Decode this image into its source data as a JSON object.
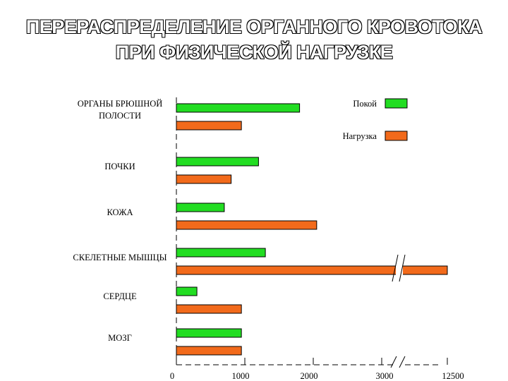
{
  "title": {
    "line1": "ПЕРЕРАСПРЕДЕЛЕНИЕ ОРГАННОГО КРОВОТОКА",
    "line2": "ПРИ ФИЗИЧЕСКОЙ НАГРУЗКЕ"
  },
  "colors": {
    "rest": "#22dd22",
    "load": "#f26a1b",
    "axis": "#000000"
  },
  "chart_data": {
    "type": "bar",
    "orientation": "horizontal",
    "categories": [
      [
        "ОРГАНЫ БРЮШНОЙ",
        "ПОЛОСТИ"
      ],
      [
        "ПОЧКИ"
      ],
      [
        "КОЖА"
      ],
      [
        "СКЕЛЕТНЫЕ МЫШЦЫ"
      ],
      [
        "СЕРДЦЕ"
      ],
      [
        "МОЗГ"
      ]
    ],
    "series": [
      {
        "name": "Покой",
        "values": [
          1800,
          1200,
          700,
          1300,
          300,
          950
        ]
      },
      {
        "name": "Нагрузка",
        "values": [
          950,
          800,
          2050,
          12500,
          950,
          950
        ]
      }
    ],
    "x_ticks": [
      "0",
      "1000",
      "2000",
      "3000",
      "12500"
    ],
    "xlim": [
      0,
      12500
    ],
    "axis_break": {
      "from": 3200,
      "to": 12500
    },
    "legend_position": "top-right",
    "grid": false
  }
}
